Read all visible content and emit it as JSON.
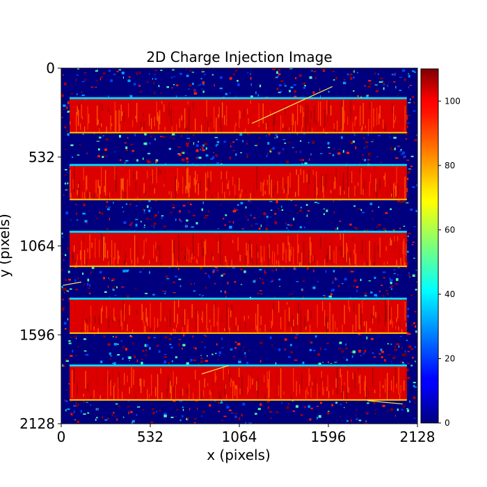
{
  "chart_data": {
    "type": "heatmap",
    "title": "2D Charge Injection Image",
    "xlabel": "x (pixels)",
    "ylabel": "y (pixels)",
    "xlim": [
      0,
      2128
    ],
    "ylim": [
      2128,
      0
    ],
    "x_ticks": [
      0,
      532,
      1064,
      1596,
      2128
    ],
    "y_ticks": [
      0,
      532,
      1064,
      1596,
      2128
    ],
    "colormap": "jet",
    "colorbar": {
      "range": [
        0,
        110
      ],
      "ticks": [
        0,
        20,
        40,
        60,
        80,
        100
      ]
    },
    "background_level": 3,
    "injection_level": 100,
    "injection_columns": [
      50,
      2065
    ],
    "injection_bands": [
      {
        "y_start": 186,
        "y_end": 390
      },
      {
        "y_start": 586,
        "y_end": 790
      },
      {
        "y_start": 986,
        "y_end": 1190
      },
      {
        "y_start": 1386,
        "y_end": 1590
      },
      {
        "y_start": 1786,
        "y_end": 1990
      }
    ],
    "cosmic_ray_streaks": [
      {
        "x1": 1140,
        "y1": 330,
        "x2": 1620,
        "y2": 110
      },
      {
        "x1": 10,
        "y1": 1300,
        "x2": 120,
        "y2": 1280
      },
      {
        "x1": 840,
        "y1": 1830,
        "x2": 1000,
        "y2": 1780
      },
      {
        "x1": 1830,
        "y1": 1990,
        "x2": 2040,
        "y2": 2010
      }
    ]
  }
}
